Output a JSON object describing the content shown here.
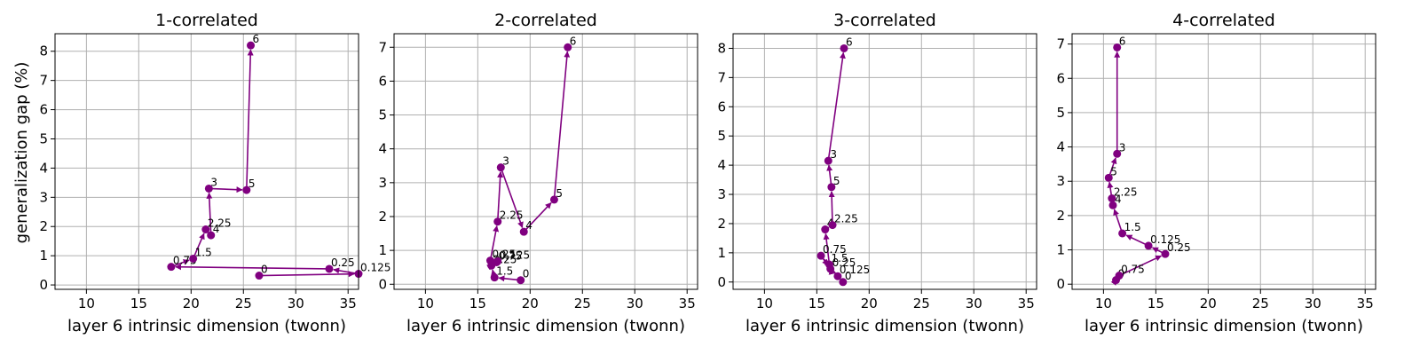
{
  "colors": {
    "series": "#800080",
    "grid": "#b0b0b0",
    "axis": "#000000"
  },
  "shared": {
    "xlabel": "layer 6 intrinsic dimension (twonn)",
    "ylabel": "generalization gap (%)",
    "xlim": [
      7,
      36
    ],
    "xticks": [
      10,
      15,
      20,
      25,
      30,
      35
    ],
    "grid": true
  },
  "chart_data": [
    {
      "type": "scatter",
      "title": "1-correlated",
      "ylim": [
        -0.15,
        8.6
      ],
      "yticks": [
        0,
        1,
        2,
        3,
        4,
        5,
        6,
        7,
        8
      ],
      "points": [
        {
          "label": "0",
          "x": 26.5,
          "y": 0.32
        },
        {
          "label": "0.125",
          "x": 36.0,
          "y": 0.38
        },
        {
          "label": "0.25",
          "x": 33.2,
          "y": 0.55
        },
        {
          "label": "0.75",
          "x": 18.1,
          "y": 0.62
        },
        {
          "label": "1.5",
          "x": 20.2,
          "y": 0.9
        },
        {
          "label": "2.25",
          "x": 21.4,
          "y": 1.9
        },
        {
          "label": "4",
          "x": 21.9,
          "y": 1.7
        },
        {
          "label": "3",
          "x": 21.7,
          "y": 3.3
        },
        {
          "label": "5",
          "x": 25.3,
          "y": 3.25
        },
        {
          "label": "6",
          "x": 25.7,
          "y": 8.2
        }
      ]
    },
    {
      "type": "scatter",
      "title": "2-correlated",
      "ylim": [
        -0.15,
        7.4
      ],
      "yticks": [
        0,
        1,
        2,
        3,
        4,
        5,
        6,
        7
      ],
      "points": [
        {
          "label": "0",
          "x": 19.1,
          "y": 0.12
        },
        {
          "label": "1.5",
          "x": 16.6,
          "y": 0.2
        },
        {
          "label": "2.25",
          "x": 16.3,
          "y": 0.55
        },
        {
          "label": "0.75",
          "x": 16.8,
          "y": 0.65
        },
        {
          "label": "0.125",
          "x": 16.9,
          "y": 0.68
        },
        {
          "label": "0.25",
          "x": 16.2,
          "y": 0.7
        },
        {
          "label": "2.25",
          "x": 16.9,
          "y": 1.85
        },
        {
          "label": "3",
          "x": 17.2,
          "y": 3.45
        },
        {
          "label": "4",
          "x": 19.4,
          "y": 1.55
        },
        {
          "label": "5",
          "x": 22.3,
          "y": 2.5
        },
        {
          "label": "6",
          "x": 23.6,
          "y": 7.0
        }
      ]
    },
    {
      "type": "scatter",
      "title": "3-correlated",
      "ylim": [
        -0.25,
        8.5
      ],
      "yticks": [
        0,
        1,
        2,
        3,
        4,
        5,
        6,
        7,
        8
      ],
      "points": [
        {
          "label": "0",
          "x": 17.5,
          "y": 0.0
        },
        {
          "label": "0.125",
          "x": 17.0,
          "y": 0.2
        },
        {
          "label": "0.75",
          "x": 15.4,
          "y": 0.9
        },
        {
          "label": "0.25",
          "x": 16.3,
          "y": 0.45
        },
        {
          "label": "1.5",
          "x": 16.2,
          "y": 0.6
        },
        {
          "label": "4",
          "x": 15.8,
          "y": 1.8
        },
        {
          "label": "2.25",
          "x": 16.5,
          "y": 1.95
        },
        {
          "label": "5",
          "x": 16.4,
          "y": 3.25
        },
        {
          "label": "3",
          "x": 16.1,
          "y": 4.15
        },
        {
          "label": "6",
          "x": 17.6,
          "y": 8.0
        }
      ]
    },
    {
      "type": "scatter",
      "title": "4-correlated",
      "ylim": [
        -0.15,
        7.3
      ],
      "yticks": [
        0,
        1,
        2,
        3,
        4,
        5,
        6,
        7
      ],
      "points": [
        {
          "label": "0",
          "x": 11.2,
          "y": 0.12
        },
        {
          "label": "0.75",
          "x": 11.5,
          "y": 0.25
        },
        {
          "label": "0.25",
          "x": 15.9,
          "y": 0.88
        },
        {
          "label": "0.125",
          "x": 14.3,
          "y": 1.12
        },
        {
          "label": "1.5",
          "x": 11.8,
          "y": 1.48
        },
        {
          "label": "4",
          "x": 10.9,
          "y": 2.3
        },
        {
          "label": "2.25",
          "x": 10.8,
          "y": 2.5
        },
        {
          "label": "5",
          "x": 10.5,
          "y": 3.1
        },
        {
          "label": "3",
          "x": 11.3,
          "y": 3.8
        },
        {
          "label": "6",
          "x": 11.3,
          "y": 6.9
        }
      ]
    }
  ]
}
